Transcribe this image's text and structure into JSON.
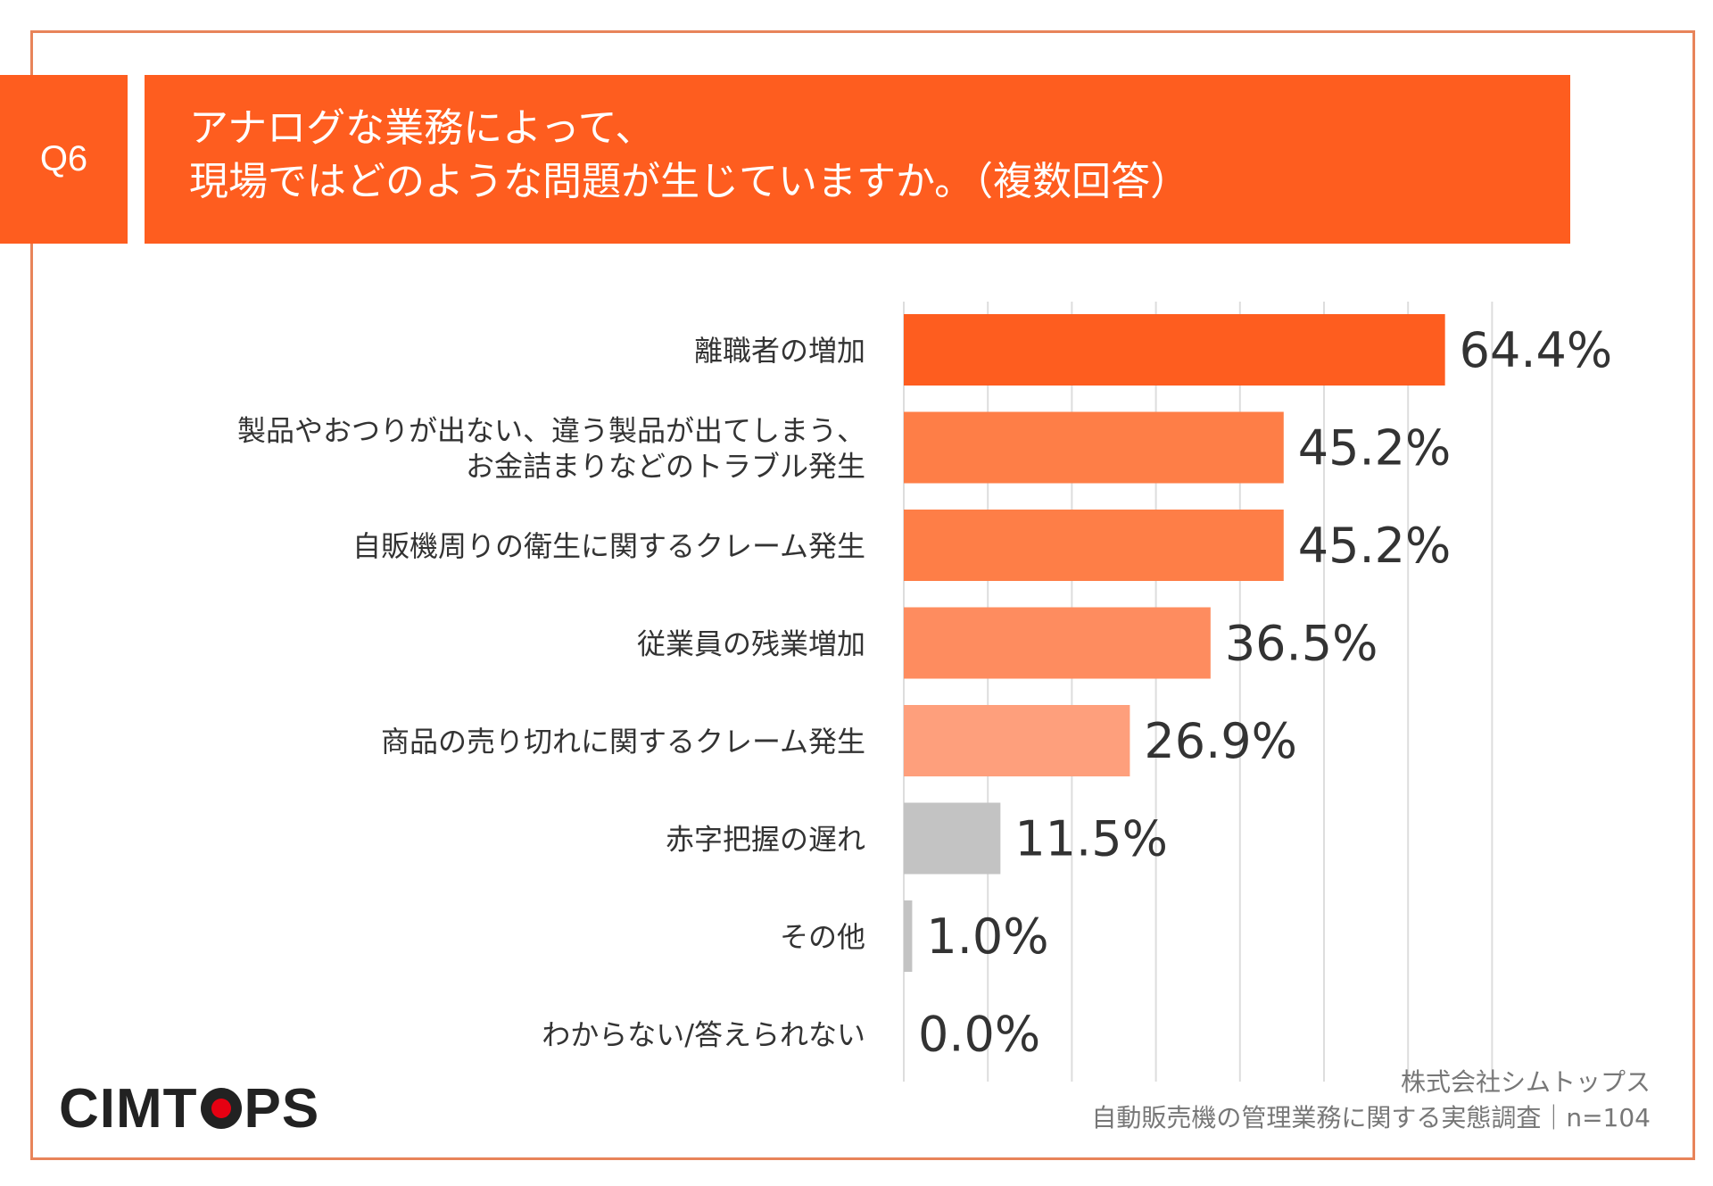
{
  "question": {
    "label": "Q6",
    "title_line1": "アナログな業務によって、",
    "title_line2": "現場ではどのような問題が生じていますか。（複数回答）"
  },
  "chart_data": {
    "type": "bar",
    "orientation": "horizontal",
    "categories": [
      [
        "離職者の増加"
      ],
      [
        "製品やおつりが出ない、違う製品が出てしまう、",
        "お金詰まりなどのトラブル発生"
      ],
      [
        "自販機周りの衛生に関するクレーム発生"
      ],
      [
        "従業員の残業増加"
      ],
      [
        "商品の売り切れに関するクレーム発生"
      ],
      [
        "赤字把握の遅れ"
      ],
      [
        "その他"
      ],
      [
        "わからない/答えられない"
      ]
    ],
    "values": [
      64.4,
      45.2,
      45.2,
      36.5,
      26.9,
      11.5,
      1.0,
      0.0
    ],
    "labels": [
      "64.4%",
      "45.2%",
      "45.2%",
      "36.5%",
      "26.9%",
      "11.5%",
      "1.0%",
      "0.0%"
    ],
    "colors": [
      "#fe5d1f",
      "#fe7e47",
      "#fe7e47",
      "#fe8c5f",
      "#fe9f7c",
      "#c3c3c3",
      "#c3c3c3",
      "#c3c3c3"
    ],
    "xlim": [
      0,
      70
    ],
    "grid": true,
    "gridline_color": "#dddddd"
  },
  "logo": {
    "text_before": "CIMT",
    "text_after": "PS"
  },
  "source": {
    "company": "株式会社シムトップス",
    "survey": "自動販売機の管理業務に関する実態調査｜n=104"
  }
}
